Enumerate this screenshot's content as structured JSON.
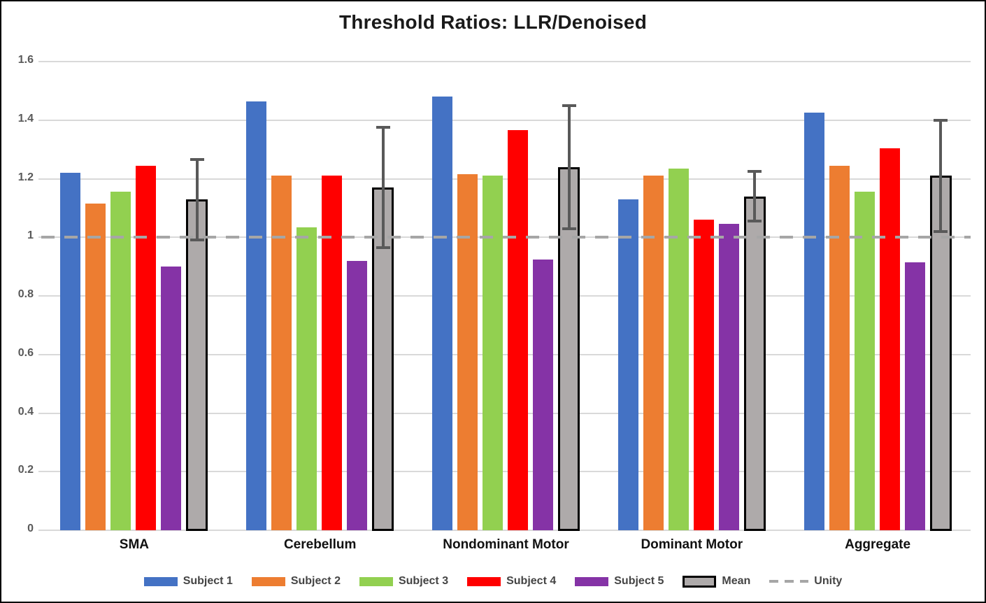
{
  "chart_data": {
    "type": "bar",
    "title": "Threshold Ratios: LLR/Denoised",
    "categories": [
      "SMA",
      "Cerebellum",
      "Nondominant Motor",
      "Dominant Motor",
      "Aggregate"
    ],
    "series": [
      {
        "name": "Subject 1",
        "color": "#4472C4",
        "values": [
          1.22,
          1.465,
          1.48,
          1.13,
          1.425
        ]
      },
      {
        "name": "Subject 2",
        "color": "#ED7D31",
        "values": [
          1.115,
          1.21,
          1.215,
          1.21,
          1.245
        ]
      },
      {
        "name": "Subject 3",
        "color": "#92D050",
        "values": [
          1.155,
          1.035,
          1.21,
          1.235,
          1.155
        ]
      },
      {
        "name": "Subject 4",
        "color": "#FF0000",
        "values": [
          1.245,
          1.21,
          1.365,
          1.06,
          1.305
        ]
      },
      {
        "name": "Subject 5",
        "color": "#8533A6",
        "values": [
          0.9,
          0.92,
          0.925,
          1.045,
          0.915
        ]
      }
    ],
    "mean_series": {
      "name": "Mean",
      "fill": "#AEAAAA",
      "border": "#000000",
      "values": [
        1.13,
        1.17,
        1.24,
        1.14,
        1.21
      ],
      "error_top": [
        1.265,
        1.375,
        1.45,
        1.225,
        1.4
      ],
      "error_bottom": [
        0.99,
        0.965,
        1.03,
        1.055,
        1.02
      ]
    },
    "unity_line": {
      "name": "Unity",
      "value": 1.0,
      "color": "#A6A6A6"
    },
    "y_axis": {
      "min": 0,
      "max": 1.6,
      "step": 0.2,
      "tick_labels": [
        "0",
        "0.2",
        "0.4",
        "0.6",
        "0.8",
        "1",
        "1.2",
        "1.4",
        "1.6"
      ]
    },
    "grid": true,
    "legend_position": "bottom",
    "colors": {
      "gridline": "#D9D9D9",
      "axis_text": "#595959",
      "error_bar": "#595959",
      "title_text": "#1A1A1A",
      "category_text": "#111111",
      "legend_text": "#444444"
    }
  }
}
